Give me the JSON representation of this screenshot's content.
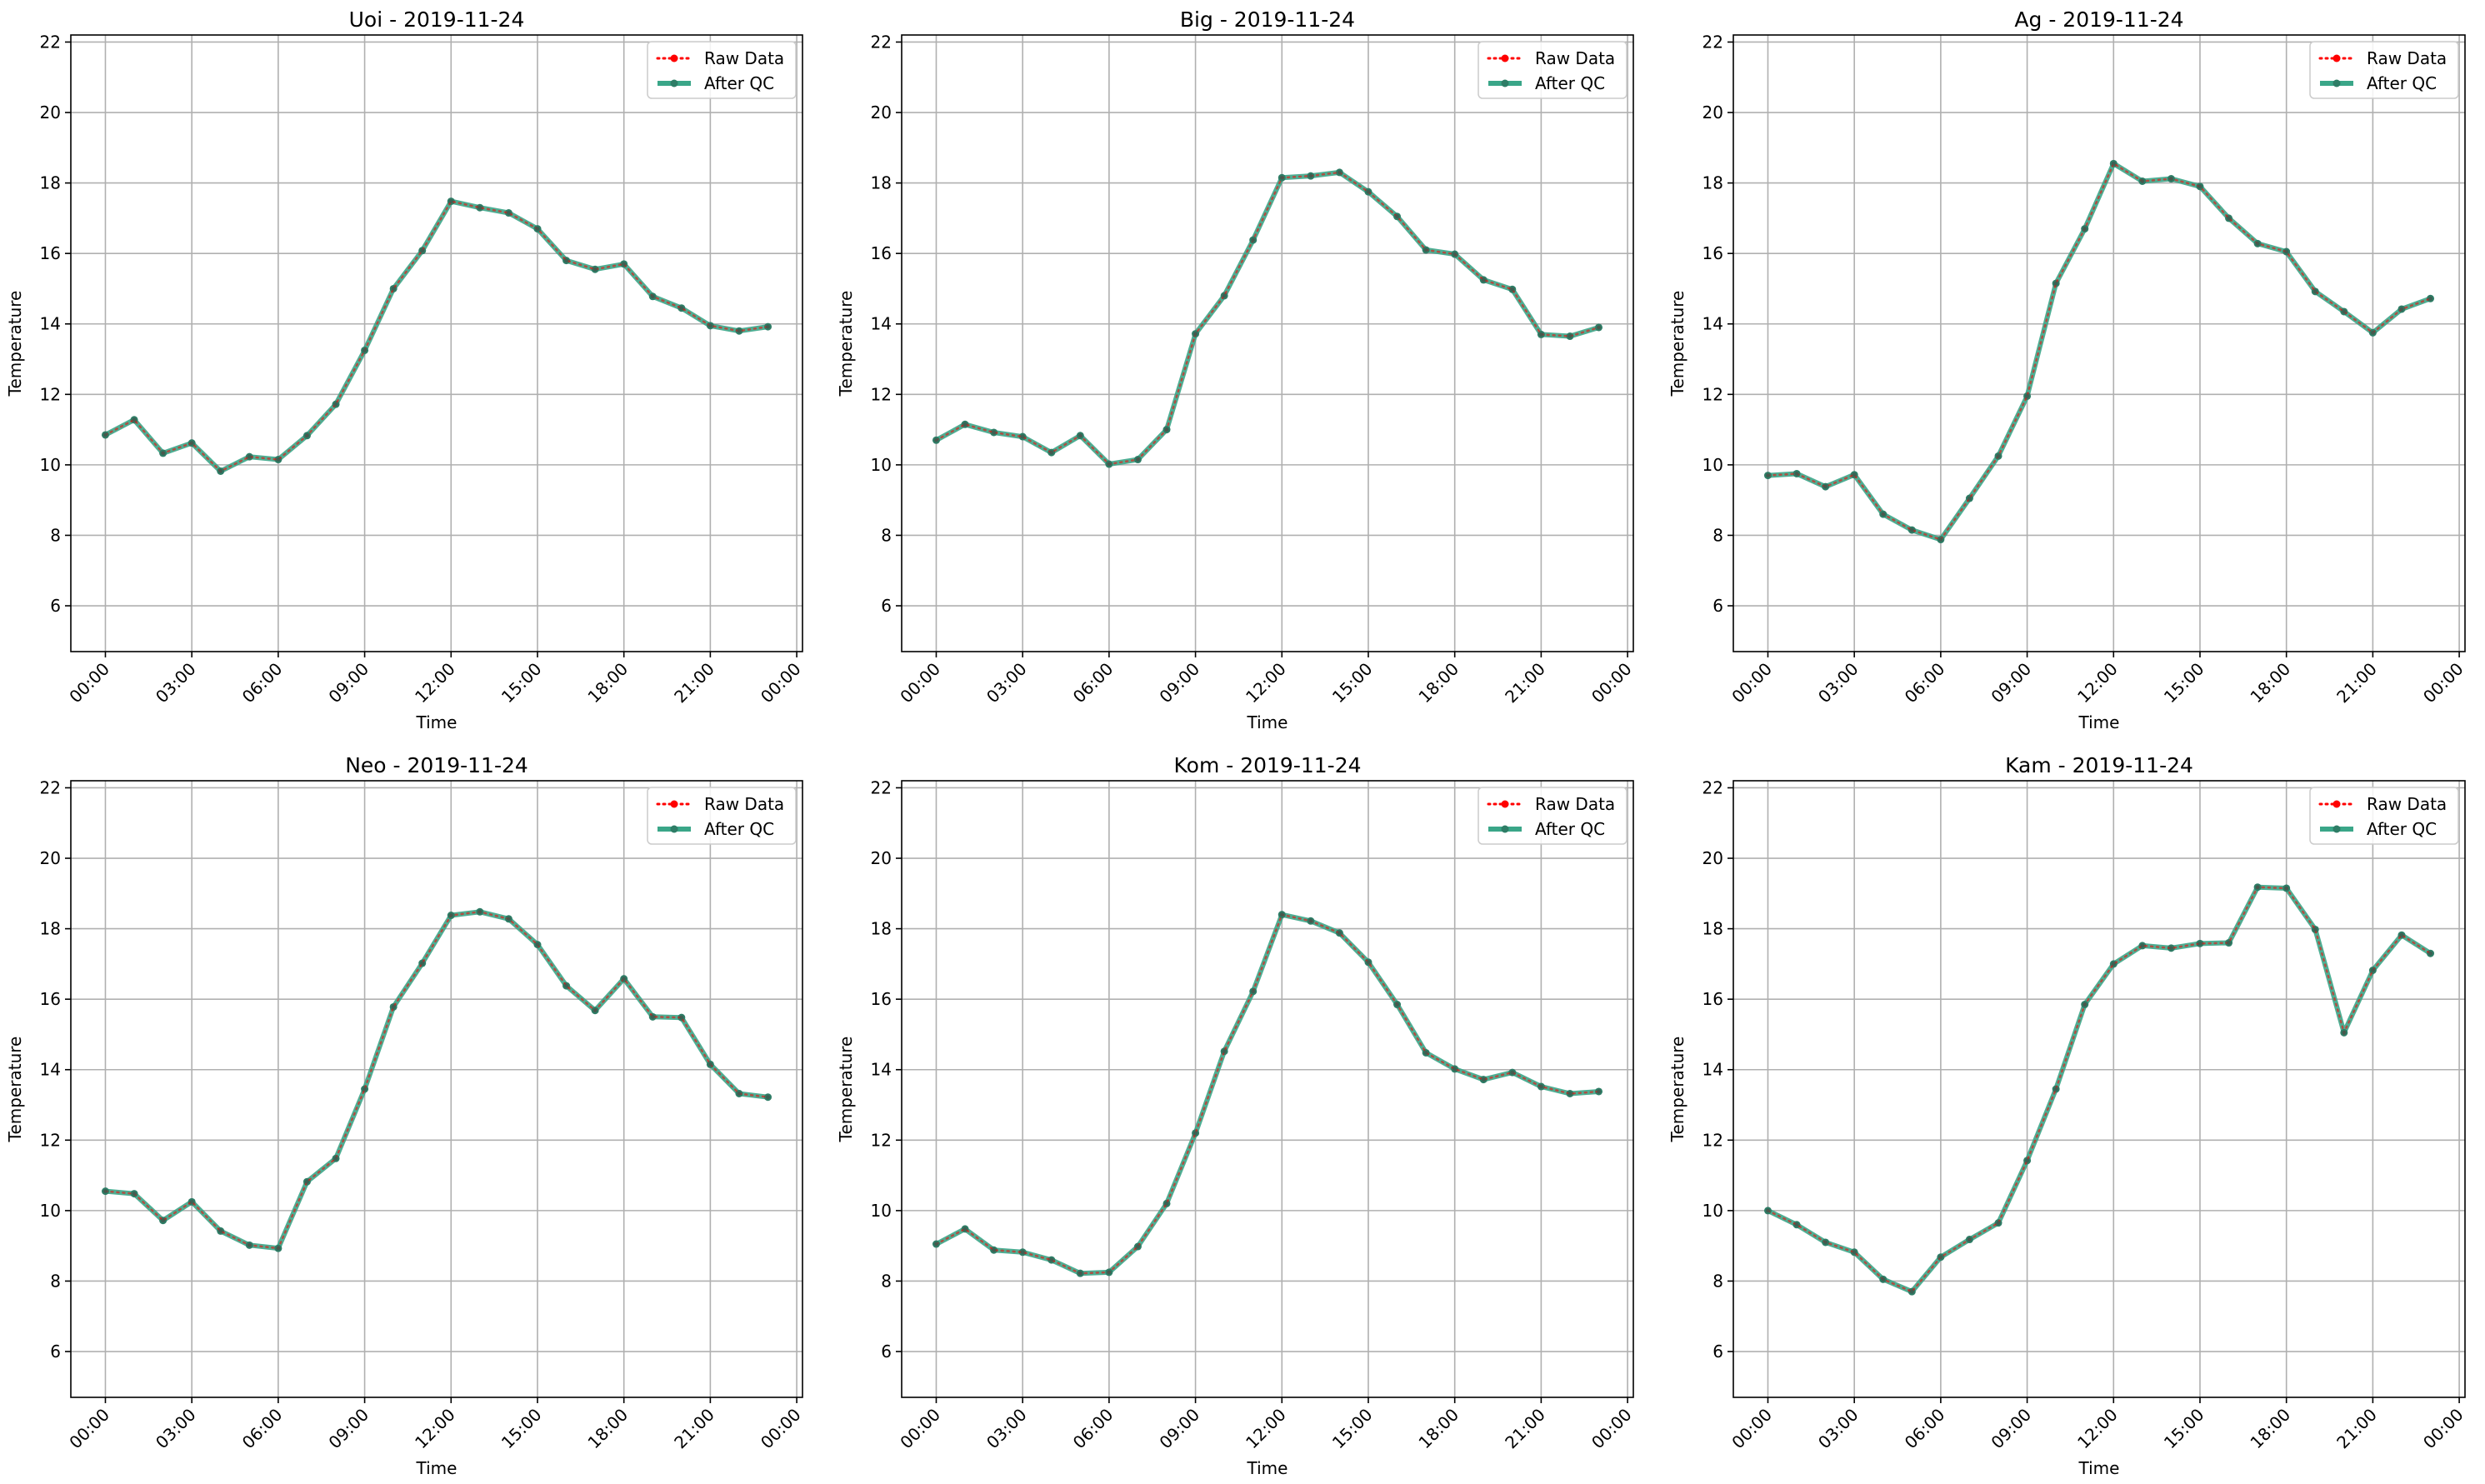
{
  "chart_data": [
    {
      "type": "line",
      "title": "Uoi - 2019-11-24",
      "xlabel": "Time",
      "ylabel": "Temperature",
      "x": [
        "00:00",
        "01:00",
        "02:00",
        "03:00",
        "04:00",
        "05:00",
        "06:00",
        "07:00",
        "08:00",
        "09:00",
        "10:00",
        "11:00",
        "12:00",
        "13:00",
        "14:00",
        "15:00",
        "16:00",
        "17:00",
        "18:00",
        "19:00",
        "20:00",
        "21:00",
        "22:00",
        "23:00"
      ],
      "xticks": [
        "00:00",
        "03:00",
        "06:00",
        "09:00",
        "12:00",
        "15:00",
        "18:00",
        "21:00",
        "00:00"
      ],
      "xlim_hours": [
        -1.2,
        24.2
      ],
      "ylim": [
        4.7,
        22.2
      ],
      "yticks": [
        6,
        8,
        10,
        12,
        14,
        16,
        18,
        20,
        22
      ],
      "grid": true,
      "legend_position": "top-right",
      "series": [
        {
          "name": "Raw Data",
          "color": "#ff0000",
          "style": "dotted-with-dots",
          "values": [
            10.85,
            11.28,
            10.33,
            10.62,
            9.82,
            10.23,
            10.15,
            10.83,
            11.72,
            13.25,
            15.0,
            16.08,
            17.48,
            17.3,
            17.15,
            16.7,
            15.8,
            15.55,
            15.7,
            14.78,
            14.45,
            13.95,
            13.8,
            13.92
          ]
        },
        {
          "name": "After QC",
          "color": "#3aa688",
          "style": "solid-with-dots",
          "values": [
            10.85,
            11.28,
            10.33,
            10.62,
            9.82,
            10.23,
            10.15,
            10.83,
            11.72,
            13.25,
            15.0,
            16.08,
            17.48,
            17.3,
            17.15,
            16.7,
            15.8,
            15.55,
            15.7,
            14.78,
            14.45,
            13.95,
            13.8,
            13.92
          ]
        }
      ]
    },
    {
      "type": "line",
      "title": "Big - 2019-11-24",
      "xlabel": "Time",
      "ylabel": "Temperature",
      "x": [
        "00:00",
        "01:00",
        "02:00",
        "03:00",
        "04:00",
        "05:00",
        "06:00",
        "07:00",
        "08:00",
        "09:00",
        "10:00",
        "11:00",
        "12:00",
        "13:00",
        "14:00",
        "15:00",
        "16:00",
        "17:00",
        "18:00",
        "19:00",
        "20:00",
        "21:00",
        "22:00",
        "23:00"
      ],
      "xticks": [
        "00:00",
        "03:00",
        "06:00",
        "09:00",
        "12:00",
        "15:00",
        "18:00",
        "21:00",
        "00:00"
      ],
      "xlim_hours": [
        -1.2,
        24.2
      ],
      "ylim": [
        4.7,
        22.2
      ],
      "yticks": [
        6,
        8,
        10,
        12,
        14,
        16,
        18,
        20,
        22
      ],
      "grid": true,
      "legend_position": "top-right",
      "series": [
        {
          "name": "Raw Data",
          "color": "#ff0000",
          "style": "dotted-with-dots",
          "values": [
            10.7,
            11.15,
            10.92,
            10.8,
            10.35,
            10.83,
            10.02,
            10.15,
            11.0,
            13.72,
            14.8,
            16.38,
            18.15,
            18.2,
            18.3,
            17.75,
            17.05,
            16.1,
            15.98,
            15.25,
            14.98,
            13.7,
            13.65,
            13.9
          ]
        },
        {
          "name": "After QC",
          "color": "#3aa688",
          "style": "solid-with-dots",
          "values": [
            10.7,
            11.15,
            10.92,
            10.8,
            10.35,
            10.83,
            10.02,
            10.15,
            11.0,
            13.72,
            14.8,
            16.38,
            18.15,
            18.2,
            18.3,
            17.75,
            17.05,
            16.1,
            15.98,
            15.25,
            14.98,
            13.7,
            13.65,
            13.9
          ]
        }
      ]
    },
    {
      "type": "line",
      "title": "Ag - 2019-11-24",
      "xlabel": "Time",
      "ylabel": "Temperature",
      "x": [
        "00:00",
        "01:00",
        "02:00",
        "03:00",
        "04:00",
        "05:00",
        "06:00",
        "07:00",
        "08:00",
        "09:00",
        "10:00",
        "11:00",
        "12:00",
        "13:00",
        "14:00",
        "15:00",
        "16:00",
        "17:00",
        "18:00",
        "19:00",
        "20:00",
        "21:00",
        "22:00",
        "23:00"
      ],
      "xticks": [
        "00:00",
        "03:00",
        "06:00",
        "09:00",
        "12:00",
        "15:00",
        "18:00",
        "21:00",
        "00:00"
      ],
      "xlim_hours": [
        -1.2,
        24.2
      ],
      "ylim": [
        4.7,
        22.2
      ],
      "yticks": [
        6,
        8,
        10,
        12,
        14,
        16,
        18,
        20,
        22
      ],
      "grid": true,
      "legend_position": "top-right",
      "series": [
        {
          "name": "Raw Data",
          "color": "#ff0000",
          "style": "dotted-with-dots",
          "values": [
            9.7,
            9.75,
            9.38,
            9.72,
            8.6,
            8.15,
            7.88,
            9.05,
            10.25,
            11.95,
            15.15,
            16.7,
            18.55,
            18.05,
            18.12,
            17.9,
            17.0,
            16.28,
            16.05,
            14.92,
            14.35,
            13.75,
            14.42,
            14.72
          ]
        },
        {
          "name": "After QC",
          "color": "#3aa688",
          "style": "solid-with-dots",
          "values": [
            9.7,
            9.75,
            9.38,
            9.72,
            8.6,
            8.15,
            7.88,
            9.05,
            10.25,
            11.95,
            15.15,
            16.7,
            18.55,
            18.05,
            18.12,
            17.9,
            17.0,
            16.28,
            16.05,
            14.92,
            14.35,
            13.75,
            14.42,
            14.72
          ]
        }
      ]
    },
    {
      "type": "line",
      "title": "Neo - 2019-11-24",
      "xlabel": "Time",
      "ylabel": "Temperature",
      "x": [
        "00:00",
        "01:00",
        "02:00",
        "03:00",
        "04:00",
        "05:00",
        "06:00",
        "07:00",
        "08:00",
        "09:00",
        "10:00",
        "11:00",
        "12:00",
        "13:00",
        "14:00",
        "15:00",
        "16:00",
        "17:00",
        "18:00",
        "19:00",
        "20:00",
        "21:00",
        "22:00",
        "23:00"
      ],
      "xticks": [
        "00:00",
        "03:00",
        "06:00",
        "09:00",
        "12:00",
        "15:00",
        "18:00",
        "21:00",
        "00:00"
      ],
      "xlim_hours": [
        -1.2,
        24.2
      ],
      "ylim": [
        4.7,
        22.2
      ],
      "yticks": [
        6,
        8,
        10,
        12,
        14,
        16,
        18,
        20,
        22
      ],
      "grid": true,
      "legend_position": "top-right",
      "series": [
        {
          "name": "Raw Data",
          "color": "#ff0000",
          "style": "dotted-with-dots",
          "values": [
            10.55,
            10.48,
            9.72,
            10.25,
            9.42,
            9.02,
            8.93,
            10.82,
            11.48,
            13.45,
            15.78,
            17.02,
            18.38,
            18.48,
            18.28,
            17.55,
            16.38,
            15.68,
            16.58,
            15.5,
            15.48,
            14.15,
            13.32,
            13.22
          ]
        },
        {
          "name": "After QC",
          "color": "#3aa688",
          "style": "solid-with-dots",
          "values": [
            10.55,
            10.48,
            9.72,
            10.25,
            9.42,
            9.02,
            8.93,
            10.82,
            11.48,
            13.45,
            15.78,
            17.02,
            18.38,
            18.48,
            18.28,
            17.55,
            16.38,
            15.68,
            16.58,
            15.5,
            15.48,
            14.15,
            13.32,
            13.22
          ]
        }
      ]
    },
    {
      "type": "line",
      "title": "Kom - 2019-11-24",
      "xlabel": "Time",
      "ylabel": "Temperature",
      "x": [
        "00:00",
        "01:00",
        "02:00",
        "03:00",
        "04:00",
        "05:00",
        "06:00",
        "07:00",
        "08:00",
        "09:00",
        "10:00",
        "11:00",
        "12:00",
        "13:00",
        "14:00",
        "15:00",
        "16:00",
        "17:00",
        "18:00",
        "19:00",
        "20:00",
        "21:00",
        "22:00",
        "23:00"
      ],
      "xticks": [
        "00:00",
        "03:00",
        "06:00",
        "09:00",
        "12:00",
        "15:00",
        "18:00",
        "21:00",
        "00:00"
      ],
      "xlim_hours": [
        -1.2,
        24.2
      ],
      "ylim": [
        4.7,
        22.2
      ],
      "yticks": [
        6,
        8,
        10,
        12,
        14,
        16,
        18,
        20,
        22
      ],
      "grid": true,
      "legend_position": "top-right",
      "series": [
        {
          "name": "Raw Data",
          "color": "#ff0000",
          "style": "dotted-with-dots",
          "values": [
            9.05,
            9.48,
            8.88,
            8.82,
            8.6,
            8.22,
            8.25,
            8.98,
            10.2,
            12.2,
            14.52,
            16.22,
            18.4,
            18.22,
            17.88,
            17.05,
            15.85,
            14.48,
            14.02,
            13.72,
            13.92,
            13.52,
            13.32,
            13.38
          ]
        },
        {
          "name": "After QC",
          "color": "#3aa688",
          "style": "solid-with-dots",
          "values": [
            9.05,
            9.48,
            8.88,
            8.82,
            8.6,
            8.22,
            8.25,
            8.98,
            10.2,
            12.2,
            14.52,
            16.22,
            18.4,
            18.22,
            17.88,
            17.05,
            15.85,
            14.48,
            14.02,
            13.72,
            13.92,
            13.52,
            13.32,
            13.38
          ]
        }
      ]
    },
    {
      "type": "line",
      "title": "Kam - 2019-11-24",
      "xlabel": "Time",
      "ylabel": "Temperature",
      "x": [
        "00:00",
        "01:00",
        "02:00",
        "03:00",
        "04:00",
        "05:00",
        "06:00",
        "07:00",
        "08:00",
        "09:00",
        "10:00",
        "11:00",
        "12:00",
        "13:00",
        "14:00",
        "15:00",
        "16:00",
        "17:00",
        "18:00",
        "19:00",
        "20:00",
        "21:00",
        "22:00",
        "23:00"
      ],
      "xticks": [
        "00:00",
        "03:00",
        "06:00",
        "09:00",
        "12:00",
        "15:00",
        "18:00",
        "21:00",
        "00:00"
      ],
      "xlim_hours": [
        -1.2,
        24.2
      ],
      "ylim": [
        4.7,
        22.2
      ],
      "yticks": [
        6,
        8,
        10,
        12,
        14,
        16,
        18,
        20,
        22
      ],
      "grid": true,
      "legend_position": "top-right",
      "series": [
        {
          "name": "Raw Data",
          "color": "#ff0000",
          "style": "dotted-with-dots",
          "values": [
            10.0,
            9.6,
            9.1,
            8.82,
            8.05,
            7.7,
            8.68,
            9.18,
            9.65,
            11.42,
            13.45,
            15.85,
            17.0,
            17.52,
            17.45,
            17.58,
            17.6,
            19.18,
            19.15,
            17.98,
            15.05,
            16.82,
            17.82,
            17.3
          ]
        },
        {
          "name": "After QC",
          "color": "#3aa688",
          "style": "solid-with-dots",
          "values": [
            10.0,
            9.6,
            9.1,
            8.82,
            8.05,
            7.7,
            8.68,
            9.18,
            9.65,
            11.42,
            13.45,
            15.85,
            17.0,
            17.52,
            17.45,
            17.58,
            17.6,
            19.18,
            19.15,
            17.98,
            15.05,
            16.82,
            17.82,
            17.3
          ]
        }
      ]
    }
  ]
}
